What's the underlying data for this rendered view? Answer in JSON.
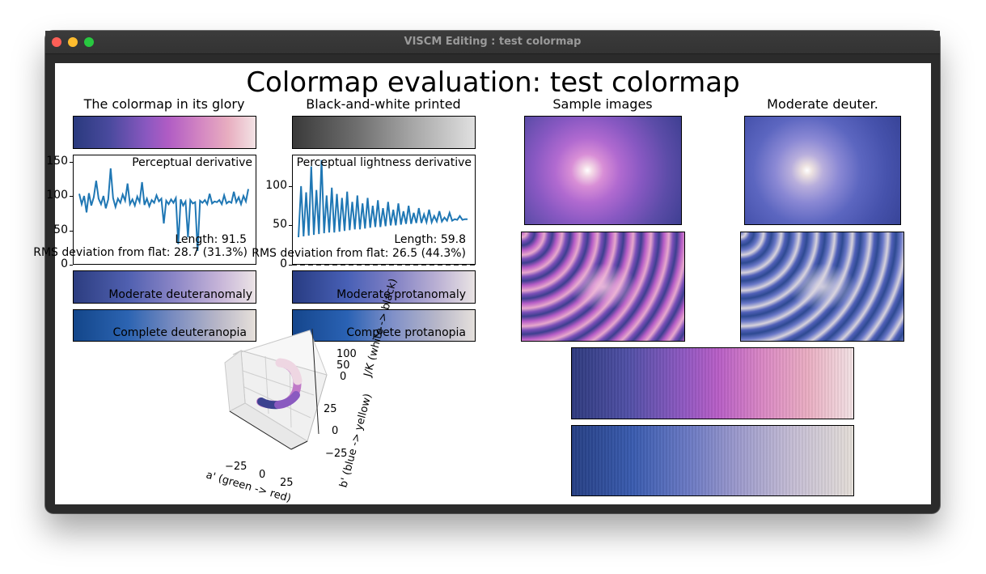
{
  "window": {
    "title": "VISCM Editing : test colormap"
  },
  "figure": {
    "title": "Colormap evaluation: test colormap",
    "col_titles": {
      "glory": "The colormap in its glory",
      "bw": "Black-and-white printed",
      "samples": "Sample images",
      "deuter": "Moderate deuter."
    },
    "labels": {
      "moderate_deuteranomaly": "Moderate deuteranomaly",
      "moderate_protanomaly": "Moderate protanomaly",
      "complete_deuteranopia": "Complete deuteranopia",
      "complete_protanopia": "Complete protanopia"
    },
    "axis3d": {
      "xlabel": "a' (green -> red)",
      "ylabel": "b' (blue -> yellow)",
      "zlabel": "J/K (white -> black)",
      "x_ticks": [
        "−25",
        "0",
        "25"
      ],
      "y_ticks": [
        "25",
        "0",
        "−25"
      ],
      "z_ticks": [
        "100",
        "50",
        "0"
      ]
    }
  },
  "chart_data": [
    {
      "type": "line",
      "title": "Perceptual derivative",
      "ytick_labels": [
        "0",
        "50",
        "100",
        "150"
      ],
      "ylim": [
        0,
        160
      ],
      "xlim": [
        0,
        256
      ],
      "annotations": [
        "Length: 91.5",
        "RMS deviation from flat: 28.7 (31.3%)"
      ],
      "series": [
        {
          "y": [
            103,
            88,
            100,
            76,
            104,
            86,
            98,
            122,
            96,
            88,
            100,
            82,
            95,
            140,
            97,
            84,
            96,
            90,
            102,
            93,
            118,
            88,
            95,
            86,
            99,
            91,
            120,
            87,
            96,
            85,
            94,
            90,
            101,
            92,
            96,
            60,
            93,
            88,
            95,
            90,
            97,
            30,
            95,
            86,
            92,
            40,
            94,
            89,
            91,
            20,
            93,
            90,
            94,
            88,
            103,
            89,
            92,
            91,
            94,
            88,
            101,
            89,
            92,
            90,
            106,
            91,
            98,
            88,
            100,
            92,
            110
          ]
        }
      ]
    },
    {
      "type": "line",
      "title": "Perceptual lightness derivative",
      "ytick_labels": [
        "0",
        "50",
        "100"
      ],
      "ylim": [
        0,
        140
      ],
      "xlim": [
        0,
        256
      ],
      "annotations": [
        "Length: 59.8",
        "RMS deviation from flat: 26.5 (44.3%)"
      ],
      "series": [
        {
          "y": [
            35,
            100,
            36,
            92,
            37,
            125,
            38,
            95,
            39,
            133,
            40,
            88,
            41,
            98,
            41,
            90,
            42,
            85,
            43,
            93,
            44,
            80,
            45,
            88,
            45,
            78,
            46,
            85,
            47,
            75,
            48,
            82,
            48,
            72,
            49,
            80,
            50,
            70,
            50,
            78,
            51,
            68,
            52,
            75,
            52,
            66,
            53,
            72,
            53,
            64,
            54,
            70,
            54,
            62,
            55,
            68,
            55,
            60,
            56,
            66,
            56,
            58,
            57,
            62,
            57,
            58,
            58
          ]
        },
        {
          "y": [
            0,
            0
          ]
        }
      ]
    }
  ]
}
